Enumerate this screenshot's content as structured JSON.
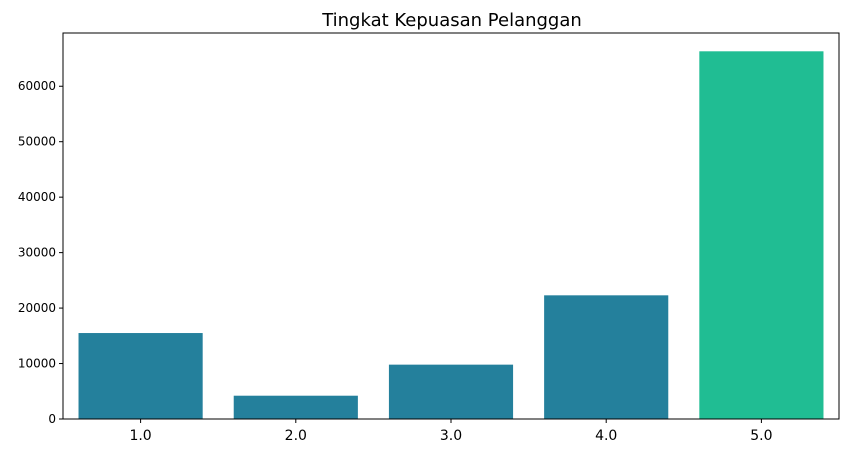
{
  "chart_data": {
    "type": "bar",
    "title": "Tingkat Kepuasan Pelanggan",
    "xlabel": "",
    "ylabel": "",
    "categories": [
      "1.0",
      "2.0",
      "3.0",
      "4.0",
      "5.0"
    ],
    "values": [
      15500,
      4200,
      9800,
      22300,
      66300
    ],
    "ylim": [
      0,
      69600
    ],
    "yticks": [
      0,
      10000,
      20000,
      30000,
      40000,
      50000,
      60000
    ],
    "ytick_labels": [
      "0",
      "10000",
      "20000",
      "30000",
      "40000",
      "50000",
      "60000"
    ],
    "colors": {
      "default_bar": "#24809c",
      "highlight_bar": "#20bd93"
    },
    "highlight_index": 4,
    "grid": false,
    "legend": "none"
  }
}
